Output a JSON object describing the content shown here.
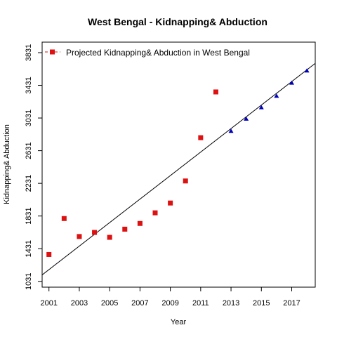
{
  "chart_data": {
    "type": "scatter",
    "title": "West Bengal  -  Kidnapping& Abduction",
    "xlabel": "Year",
    "ylabel": "Kidnapping& Abduction",
    "xlim": [
      2000.55,
      2018.55
    ],
    "ylim": [
      960,
      3960
    ],
    "x_ticks": [
      2001,
      2003,
      2005,
      2007,
      2009,
      2011,
      2013,
      2015,
      2017
    ],
    "y_ticks": [
      1031,
      1431,
      1831,
      2231,
      2631,
      3031,
      3431,
      3831
    ],
    "grid": false,
    "legend": {
      "position": "top-left",
      "entries": [
        "Projected  Kidnapping& Abduction  in  West Bengal"
      ]
    },
    "colors": {
      "observed": "#dd1111",
      "projected": "#0000bb",
      "trend": "#000000"
    },
    "series": [
      {
        "name": "",
        "marker": "square",
        "color": "#dd1111",
        "x": [
          2001,
          2002,
          2003,
          2004,
          2005,
          2006,
          2007,
          2008,
          2009,
          2010,
          2011,
          2012
        ],
        "y": [
          1360,
          1800,
          1580,
          1630,
          1570,
          1670,
          1740,
          1870,
          1990,
          2260,
          2790,
          3350
        ]
      },
      {
        "name": "Projected  Kidnapping& Abduction  in  West Bengal",
        "marker": "triangle",
        "color": "#0000bb",
        "x": [
          2013,
          2014,
          2015,
          2016,
          2017,
          2018
        ],
        "y": [
          2870,
          3020,
          3160,
          3300,
          3460,
          3610
        ]
      }
    ],
    "trend_line": {
      "x": [
        2000.55,
        2018.55
      ],
      "y": [
        1110,
        3700
      ]
    }
  }
}
